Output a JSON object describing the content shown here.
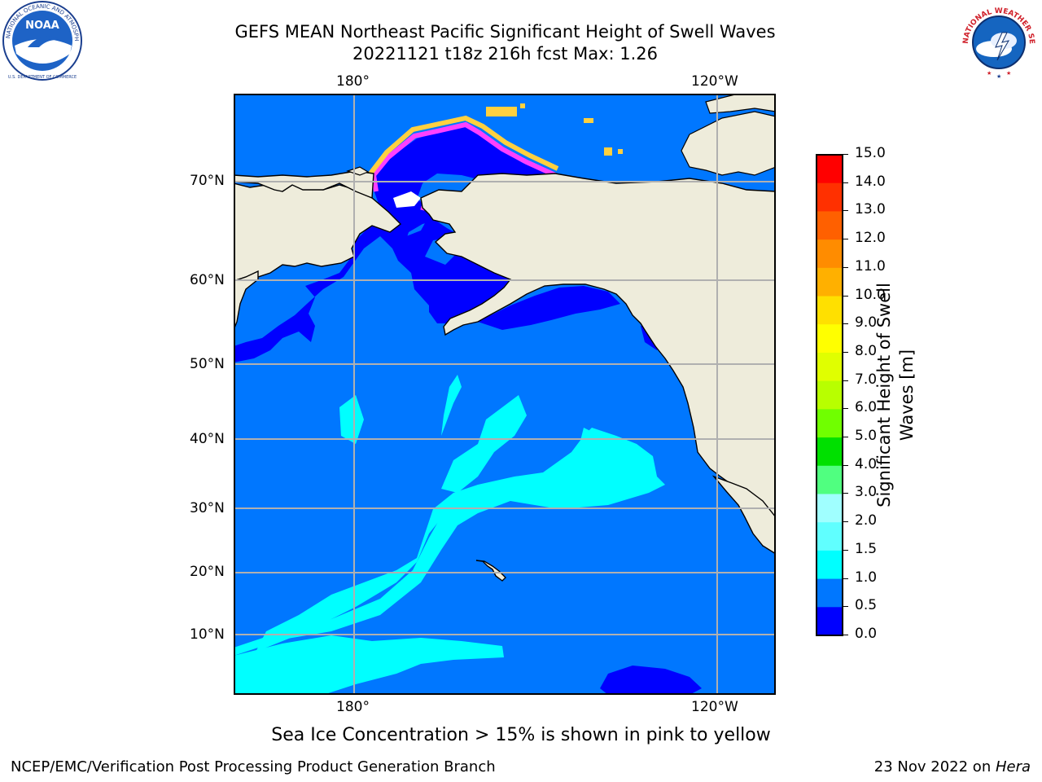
{
  "title_line1": "GEFS MEAN Northeast Pacific Significant Height of Swell Waves",
  "title_line2": "20221121 t18z 216h fcst   Max: 1.26",
  "noaa_logo": {
    "center_text": "NOAA",
    "ring_text": "NATIONAL OCEANIC AND ATMOSPHERIC ADMINISTRATION",
    "bottom_text": "U.S. DEPARTMENT OF COMMERCE"
  },
  "nws_logo": {
    "ring_text": "NATIONAL WEATHER SERVICE"
  },
  "map": {
    "lon_labels_top": [
      "180°",
      "120°W"
    ],
    "lon_labels_bottom": [
      "180°",
      "120°W"
    ],
    "lat_labels": [
      "70°N",
      "60°N",
      "50°N",
      "40°N",
      "30°N",
      "20°N",
      "10°N"
    ],
    "colors": {
      "land": "#eeecdb",
      "ocean_0_05": "#0000ff",
      "ocean_05_10": "#0077ff",
      "ocean_10_15": "#00ffff",
      "sea_ice_edge_pink": "#ff40ff",
      "sea_ice_yellow": "#ffd040",
      "grid": "#b0b0b0"
    }
  },
  "colorbar": {
    "tick_labels": [
      "15.0",
      "14.0",
      "13.0",
      "12.0",
      "11.0",
      "10.0",
      "9.0",
      "8.0",
      "7.0",
      "6.0",
      "5.0",
      "4.0",
      "3.0",
      "2.0",
      "1.5",
      "1.0",
      "0.5",
      "0.0"
    ],
    "segment_colors": [
      "#ff0000",
      "#ff3000",
      "#ff6000",
      "#ff8c00",
      "#ffb000",
      "#ffe000",
      "#ffff00",
      "#e0ff00",
      "#b8ff00",
      "#70ff00",
      "#00e000",
      "#50ff80",
      "#a0ffff",
      "#60ffff",
      "#00ffff",
      "#0077ff",
      "#0000ff"
    ],
    "label_line1": "Significant Height of Swell",
    "label_line2": "Waves [m]"
  },
  "caption": "Sea Ice Concentration > 15% is shown in pink to yellow",
  "footer_left": "NCEP/EMC/Verification Post Processing Product Generation Branch",
  "footer_right_date": "23 Nov 2022 on ",
  "footer_right_host": "Hera"
}
